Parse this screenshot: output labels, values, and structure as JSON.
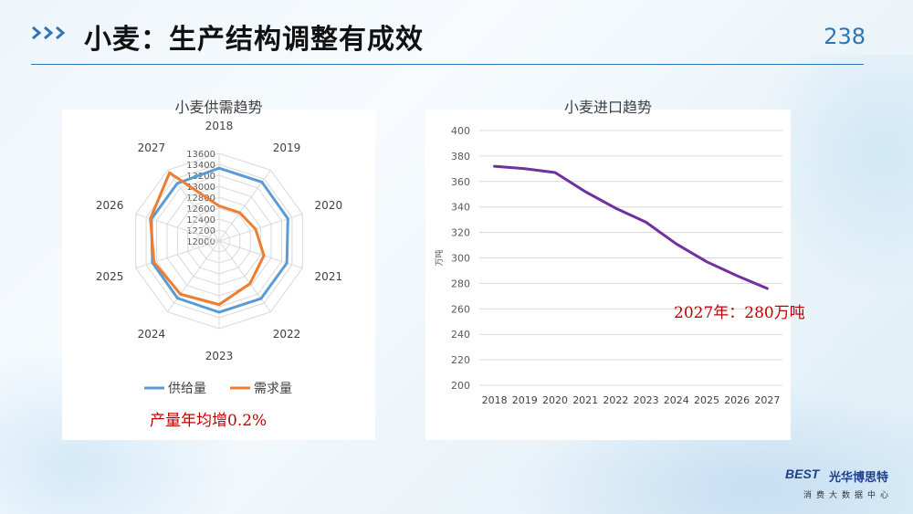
{
  "header": {
    "title": "小麦：生产结构调整有成效",
    "page_number": "238"
  },
  "logo": {
    "brand": "BEST",
    "name_cn": "光华博思特",
    "subtitle": "消费大数据中心"
  },
  "colors": {
    "accent": "#2e75b6",
    "supply": "#5b9bd5",
    "demand": "#ed7d31",
    "imports": "#7030a0",
    "note": "#c00000"
  },
  "notes": {
    "radar": "产量年均增0.2%",
    "line": "2027年：280万吨"
  },
  "chart_data": [
    {
      "type": "radar",
      "title": "小麦供需趋势",
      "categories": [
        "2018",
        "2019",
        "2020",
        "2021",
        "2022",
        "2023",
        "2024",
        "2025",
        "2026",
        "2027"
      ],
      "rlim": [
        12000,
        13600
      ],
      "ticks": [
        "12000",
        "12200",
        "12400",
        "12600",
        "12800",
        "13000",
        "13200",
        "13400",
        "13600"
      ],
      "tick_values": [
        12000,
        12200,
        12400,
        12600,
        12800,
        13000,
        13200,
        13400,
        13600
      ],
      "series": [
        {
          "name": "供给量",
          "values": [
            13330,
            13330,
            13320,
            13300,
            13300,
            13300,
            13290,
            13280,
            13300,
            13300
          ]
        },
        {
          "name": "需求量",
          "values": [
            12640,
            12640,
            12700,
            12860,
            12960,
            13160,
            13200,
            13250,
            13320,
            13540
          ]
        }
      ],
      "legend": "bottom"
    },
    {
      "type": "line",
      "title": "小麦进口趋势",
      "x": [
        "2018",
        "2019",
        "2020",
        "2021",
        "2022",
        "2023",
        "2024",
        "2025",
        "2026",
        "2027"
      ],
      "values": [
        372,
        370,
        367,
        352,
        339,
        328,
        311,
        297,
        286,
        276
      ],
      "ylabel": "万吨",
      "ylim": [
        200,
        400
      ],
      "yticks": [
        "200",
        "220",
        "240",
        "260",
        "280",
        "300",
        "320",
        "340",
        "360",
        "380",
        "400"
      ],
      "ytick_values": [
        200,
        220,
        240,
        260,
        280,
        300,
        320,
        340,
        360,
        380,
        400
      ],
      "grid": true
    }
  ]
}
